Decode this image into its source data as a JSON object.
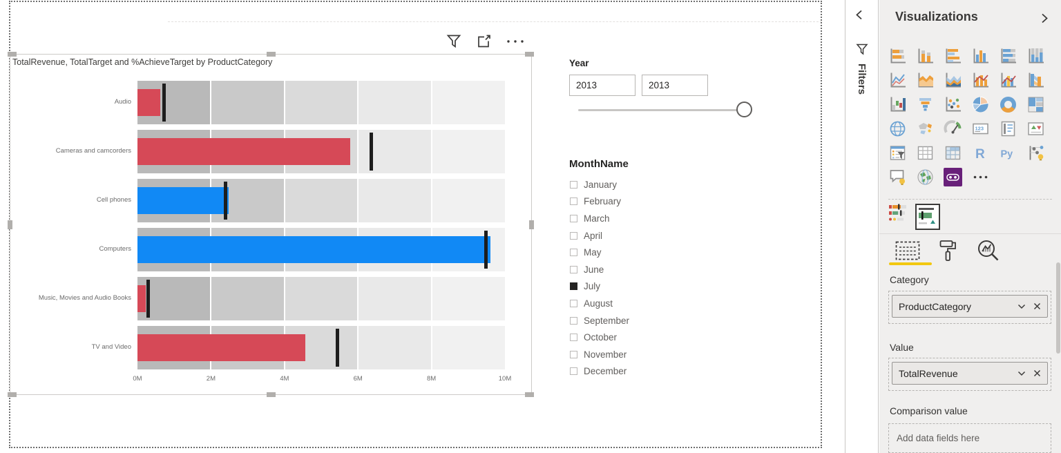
{
  "canvas": {
    "chart_visual": {
      "title": "TotalRevenue, TotalTarget and %AchieveTarget by ProductCategory",
      "header_icons": [
        "filter",
        "focus-mode",
        "more-options"
      ]
    },
    "year_slicer": {
      "label": "Year",
      "range_start": "2013",
      "range_end": "2013"
    },
    "month_slicer": {
      "label": "MonthName",
      "items": [
        {
          "label": "January",
          "checked": false
        },
        {
          "label": "February",
          "checked": false
        },
        {
          "label": "March",
          "checked": false
        },
        {
          "label": "April",
          "checked": false
        },
        {
          "label": "May",
          "checked": false
        },
        {
          "label": "June",
          "checked": false
        },
        {
          "label": "July",
          "checked": true
        },
        {
          "label": "August",
          "checked": false
        },
        {
          "label": "September",
          "checked": false
        },
        {
          "label": "October",
          "checked": false
        },
        {
          "label": "November",
          "checked": false
        },
        {
          "label": "December",
          "checked": false
        }
      ]
    }
  },
  "chart_data": {
    "type": "bar",
    "subtype": "bullet",
    "orientation": "horizontal",
    "title": "TotalRevenue, TotalTarget and %AchieveTarget by ProductCategory",
    "categories": [
      "Audio",
      "Cameras and camcorders",
      "Cell phones",
      "Computers",
      "Music, Movies and Audio Books",
      "TV and Video"
    ],
    "series": [
      {
        "name": "TotalRevenue",
        "unit": "millions",
        "values": [
          0.62,
          5.79,
          2.49,
          9.61,
          0.23,
          4.56
        ]
      },
      {
        "name": "TotalTarget",
        "unit": "millions",
        "values": [
          0.72,
          6.37,
          2.4,
          9.49,
          0.3,
          5.45
        ]
      }
    ],
    "bar_colors": [
      "#d64957",
      "#d64957",
      "#1189f5",
      "#1189f5",
      "#d64957",
      "#d64957"
    ],
    "color_rule": "blue when TotalRevenue >= TotalTarget, red otherwise (%AchieveTarget)",
    "target_marker_color": "#1d1d1d",
    "band_colors": [
      "#b9b9b9",
      "#c9c9c9",
      "#dadada",
      "#e9e9e9",
      "#f1f1f1"
    ],
    "x_ticks": [
      "0M",
      "2M",
      "4M",
      "6M",
      "8M",
      "10M"
    ],
    "xlim_millions": [
      0,
      10
    ],
    "legend": "none",
    "grid": "white vertical lines every 2M"
  },
  "filters_rail": {
    "label": "Filters"
  },
  "visualizations_panel": {
    "title": "Visualizations",
    "gallery": [
      "stacked-bar-chart",
      "stacked-column-chart",
      "clustered-bar-chart",
      "clustered-column-chart",
      "100-stacked-bar-chart",
      "100-stacked-column-chart",
      "line-chart",
      "area-chart",
      "stacked-area-chart",
      "line-and-stacked-column-chart",
      "line-and-clustered-column-chart",
      "ribbon-chart",
      "waterfall-chart",
      "funnel-chart",
      "scatter-chart",
      "pie-chart",
      "donut-chart",
      "treemap",
      "map",
      "filled-map",
      "gauge",
      "card",
      "multi-row-card",
      "kpi",
      "slicer",
      "table",
      "matrix",
      "r-script-visual",
      "python-visual",
      "key-influencers",
      "qna-visual",
      "arcgis-map",
      "bullet-chart-store",
      "more-options"
    ],
    "gallery_selected": "bullet-chart-store",
    "custom_visuals": [
      {
        "name": "bullet-chart-classic",
        "selected": false
      },
      {
        "name": "bullet-chart",
        "selected": true
      }
    ],
    "tabs": [
      {
        "name": "fields",
        "selected": true
      },
      {
        "name": "format",
        "selected": false
      },
      {
        "name": "analytics",
        "selected": false
      }
    ],
    "accent_underline_color": "#f2c811",
    "wells": [
      {
        "label": "Category",
        "field": "ProductCategory"
      },
      {
        "label": "Value",
        "field": "TotalRevenue"
      },
      {
        "label": "Comparison value",
        "placeholder": "Add data fields here"
      }
    ]
  }
}
